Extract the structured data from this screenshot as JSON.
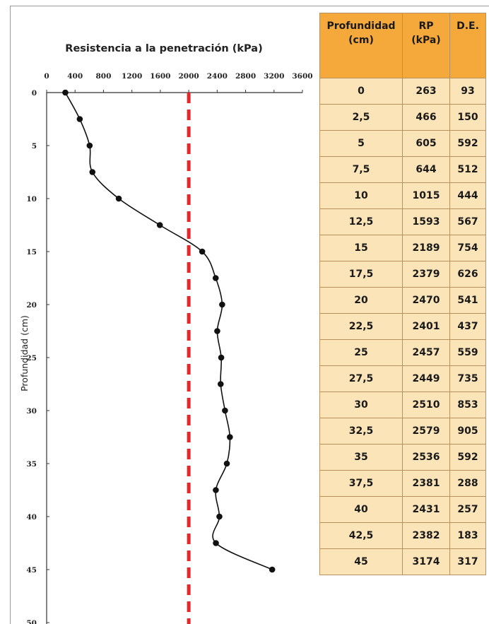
{
  "chart_data": {
    "type": "line",
    "title": "Resistencia a la penetración (kPa)",
    "xlabel": "Resistencia a la penetración (kPa)",
    "ylabel": "Profundidad (cm)",
    "xlim": [
      0,
      3600
    ],
    "ylim": [
      0,
      50
    ],
    "y_inverted": true,
    "x_axis_position": "top",
    "xticks": [
      "0",
      "400",
      "800",
      "1200",
      "1600",
      "2000",
      "2400",
      "2800",
      "3200",
      "3600"
    ],
    "yticks": [
      "0",
      "5",
      "10",
      "15",
      "20",
      "25",
      "30",
      "35",
      "40",
      "45",
      "50"
    ],
    "series": [
      {
        "name": "",
        "color": "#111111",
        "points": [
          {
            "depth": 0,
            "rp": 263
          },
          {
            "depth": 2.5,
            "rp": 466
          },
          {
            "depth": 5,
            "rp": 605
          },
          {
            "depth": 7.5,
            "rp": 644
          },
          {
            "depth": 10,
            "rp": 1015
          },
          {
            "depth": 12.5,
            "rp": 1593
          },
          {
            "depth": 15,
            "rp": 2189
          },
          {
            "depth": 17.5,
            "rp": 2379
          },
          {
            "depth": 20,
            "rp": 2470
          },
          {
            "depth": 22.5,
            "rp": 2401
          },
          {
            "depth": 25,
            "rp": 2457
          },
          {
            "depth": 27.5,
            "rp": 2449
          },
          {
            "depth": 30,
            "rp": 2510
          },
          {
            "depth": 32.5,
            "rp": 2579
          },
          {
            "depth": 35,
            "rp": 2536
          },
          {
            "depth": 37.5,
            "rp": 2381
          },
          {
            "depth": 40,
            "rp": 2431
          },
          {
            "depth": 42.5,
            "rp": 2382
          },
          {
            "depth": 45,
            "rp": 3174
          }
        ]
      }
    ],
    "reference_line": {
      "x": 2000,
      "color": "#e8262a",
      "style": "dashed"
    },
    "grid": false
  },
  "table": {
    "headers": [
      {
        "line1": "Profundidad",
        "line2": "(cm)"
      },
      {
        "line1": "RP",
        "line2": "(kPa)"
      },
      {
        "line1": "D.E.",
        "line2": ""
      }
    ],
    "rows": [
      [
        "0",
        "263",
        "93"
      ],
      [
        "2,5",
        "466",
        "150"
      ],
      [
        "5",
        "605",
        "592"
      ],
      [
        "7,5",
        "644",
        "512"
      ],
      [
        "10",
        "1015",
        "444"
      ],
      [
        "12,5",
        "1593",
        "567"
      ],
      [
        "15",
        "2189",
        "754"
      ],
      [
        "17,5",
        "2379",
        "626"
      ],
      [
        "20",
        "2470",
        "541"
      ],
      [
        "22,5",
        "2401",
        "437"
      ],
      [
        "25",
        "2457",
        "559"
      ],
      [
        "27,5",
        "2449",
        "735"
      ],
      [
        "30",
        "2510",
        "853"
      ],
      [
        "32,5",
        "2579",
        "905"
      ],
      [
        "35",
        "2536",
        "592"
      ],
      [
        "37,5",
        "2381",
        "288"
      ],
      [
        "40",
        "2431",
        "257"
      ],
      [
        "42,5",
        "2382",
        "183"
      ],
      [
        "45",
        "3174",
        "317"
      ]
    ],
    "header_color": "#f6a93b",
    "row_color": "#fbe4b8"
  }
}
